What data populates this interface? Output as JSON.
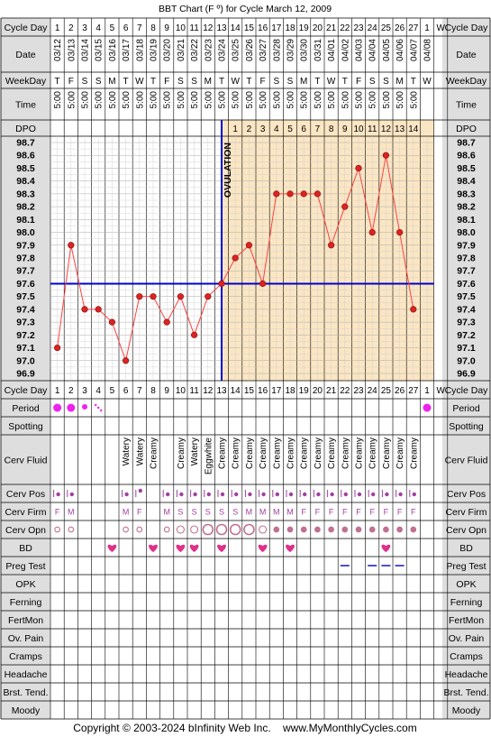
{
  "title": "BBT Chart (F º) for Cycle March 12, 2009",
  "copyright": "Copyright © 2003-2024 bInfinity Web Inc.    www.MyMonthlyCycles.com",
  "row_labels": {
    "cycle_day": "Cycle Day",
    "date": "Date",
    "weekday": "WeekDay",
    "time": "Time",
    "dpo": "DPO",
    "period": "Period",
    "spotting": "Spotting",
    "cerv_fluid": "Cerv Fluid",
    "cerv_pos": "Cerv Pos",
    "cerv_firm": "Cerv Firm",
    "cerv_opn": "Cerv Opn",
    "bd": "BD",
    "preg_test": "Preg Test",
    "opk": "OPK",
    "ferning": "Ferning",
    "fertmon": "FertMon",
    "ov_pain": "Ov. Pain",
    "cramps": "Cramps",
    "headache": "Headache",
    "brst_tend": "Brst. Tend.",
    "moody": "Moody"
  },
  "columns": {
    "cycle_days": [
      "1",
      "2",
      "3",
      "4",
      "5",
      "6",
      "7",
      "8",
      "9",
      "10",
      "11",
      "12",
      "13",
      "14",
      "15",
      "16",
      "17",
      "18",
      "19",
      "20",
      "21",
      "22",
      "23",
      "24",
      "25",
      "26",
      "27",
      "1",
      "W"
    ],
    "dates": [
      "03/12",
      "03/13",
      "03/14",
      "03/15",
      "03/16",
      "03/17",
      "03/18",
      "03/19",
      "03/20",
      "03/21",
      "03/22",
      "03/23",
      "03/24",
      "03/25",
      "03/26",
      "03/27",
      "03/28",
      "03/29",
      "03/30",
      "03/31",
      "04/01",
      "04/02",
      "04/03",
      "04/04",
      "04/05",
      "04/06",
      "04/07",
      "04/08",
      ""
    ],
    "weekdays": [
      "T",
      "F",
      "S",
      "S",
      "M",
      "T",
      "W",
      "T",
      "F",
      "S",
      "S",
      "M",
      "T",
      "W",
      "T",
      "F",
      "S",
      "S",
      "M",
      "T",
      "W",
      "T",
      "F",
      "S",
      "S",
      "M",
      "T",
      "W",
      ""
    ],
    "times": [
      "5:00",
      "5:00",
      "5:00",
      "5:00",
      "5:00",
      "5:00",
      "5:00",
      "5:00",
      "5:00",
      "5:00",
      "5:00",
      "5:00",
      "5:00",
      "5:00",
      "5:00",
      "5:00",
      "5:00",
      "5:00",
      "5:00",
      "5:00",
      "5:00",
      "5:00",
      "5:00",
      "5:00",
      "5:00",
      "5:00",
      "5:00",
      "",
      ""
    ],
    "dpo": [
      "",
      "",
      "",
      "",
      "",
      "",
      "",
      "",
      "",
      "",
      "",
      "",
      "",
      "1",
      "2",
      "3",
      "4",
      "5",
      "6",
      "7",
      "8",
      "9",
      "10",
      "11",
      "12",
      "13",
      "14",
      "",
      ""
    ],
    "period": [
      "heavy",
      "heavy",
      "medium",
      "spotting",
      "",
      "",
      "",
      "",
      "",
      "",
      "",
      "",
      "",
      "",
      "",
      "",
      "",
      "",
      "",
      "",
      "",
      "",
      "",
      "",
      "",
      "",
      "",
      "heavy",
      ""
    ],
    "cerv_fluid": [
      "",
      "",
      "",
      "",
      "",
      "Watery",
      "Watery",
      "Creamy",
      "",
      "Creamy",
      "Watery",
      "Eggwhite",
      "Creamy",
      "Creamy",
      "Creamy",
      "Creamy",
      "Creamy",
      "Creamy",
      "Creamy",
      "Creamy",
      "Creamy",
      "Creamy",
      "Creamy",
      "Creamy",
      "Creamy",
      "Creamy",
      "Creamy",
      "",
      ""
    ],
    "cerv_pos": [
      "low",
      "low",
      "",
      "",
      "",
      "low",
      "high",
      "",
      "low",
      "low",
      "low",
      "low",
      "low",
      "low",
      "low",
      "low",
      "low",
      "low",
      "low",
      "low",
      "low",
      "low",
      "low",
      "low",
      "low",
      "low",
      "low",
      "",
      ""
    ],
    "cerv_firm": [
      "F",
      "M",
      "",
      "",
      "",
      "M",
      "F",
      "",
      "M",
      "S",
      "S",
      "S",
      "S",
      "S",
      "M",
      "M",
      "M",
      "M",
      "F",
      "F",
      "F",
      "F",
      "F",
      "F",
      "F",
      "F",
      "F",
      "",
      ""
    ],
    "cerv_opn": [
      "small",
      "small",
      "",
      "",
      "",
      "small",
      "small",
      "",
      "small",
      "medium",
      "medium",
      "large",
      "large",
      "large",
      "large",
      "medium",
      "dot",
      "dot",
      "dot",
      "dot",
      "dot",
      "dot",
      "dot",
      "dot",
      "dot",
      "dot",
      "dot",
      "",
      ""
    ],
    "bd": [
      "",
      "",
      "",
      "",
      "yes",
      "",
      "",
      "yes",
      "",
      "yes",
      "yes",
      "",
      "yes",
      "",
      "",
      "yes",
      "",
      "yes",
      "",
      "",
      "",
      "",
      "",
      "",
      "yes",
      "",
      "",
      "",
      ""
    ],
    "preg_test": [
      "",
      "",
      "",
      "",
      "",
      "",
      "",
      "",
      "",
      "",
      "",
      "",
      "",
      "",
      "",
      "",
      "",
      "",
      "",
      "",
      "",
      "negative",
      "",
      "negative",
      "negative",
      "negative",
      "",
      "",
      ""
    ]
  },
  "chart_data": {
    "type": "line",
    "title": "BBT Chart (F º) for Cycle March 12, 2009",
    "x_label": "Cycle Day",
    "x": [
      1,
      2,
      3,
      4,
      5,
      6,
      7,
      8,
      9,
      10,
      11,
      12,
      13,
      14,
      15,
      16,
      17,
      18,
      19,
      20,
      21,
      22,
      23,
      24,
      25,
      26,
      27
    ],
    "series": [
      {
        "values": [
          97.1,
          97.9,
          97.4,
          97.4,
          97.3,
          97.0,
          97.5,
          97.5,
          97.3,
          97.5,
          97.2,
          97.5,
          97.6,
          97.8,
          97.9,
          97.6,
          98.3,
          98.3,
          98.3,
          98.3,
          97.9,
          98.2,
          98.5,
          98.0,
          98.6,
          98.0,
          97.4
        ]
      }
    ],
    "y_ticks": [
      "98.7",
      "98.6",
      "98.5",
      "98.4",
      "98.3",
      "98.2",
      "98.1",
      "98.0",
      "97.9",
      "97.8",
      "97.7",
      "97.6",
      "97.5",
      "97.4",
      "97.3",
      "97.2",
      "97.1",
      "97.0",
      "96.9"
    ],
    "ylim": [
      96.9,
      98.7
    ],
    "coverline": 97.6,
    "ovulation_day": 13,
    "ovulation_label": "OVULATION",
    "grid": true
  },
  "colors": {
    "line": "#ff4040",
    "point": "#dd2222",
    "coverline": "#0000cc",
    "luteal_fill": "#fbe6c4",
    "label_bg": "#dedede",
    "grid": "#aaaaaa",
    "period_dot": "#ee22ee",
    "cerv_pos": "#a040a0",
    "firm_text": "#a040a0",
    "opn_ring": "#c07090",
    "bd_heart": "#e0308a",
    "preg_neg": "#5050cc"
  }
}
